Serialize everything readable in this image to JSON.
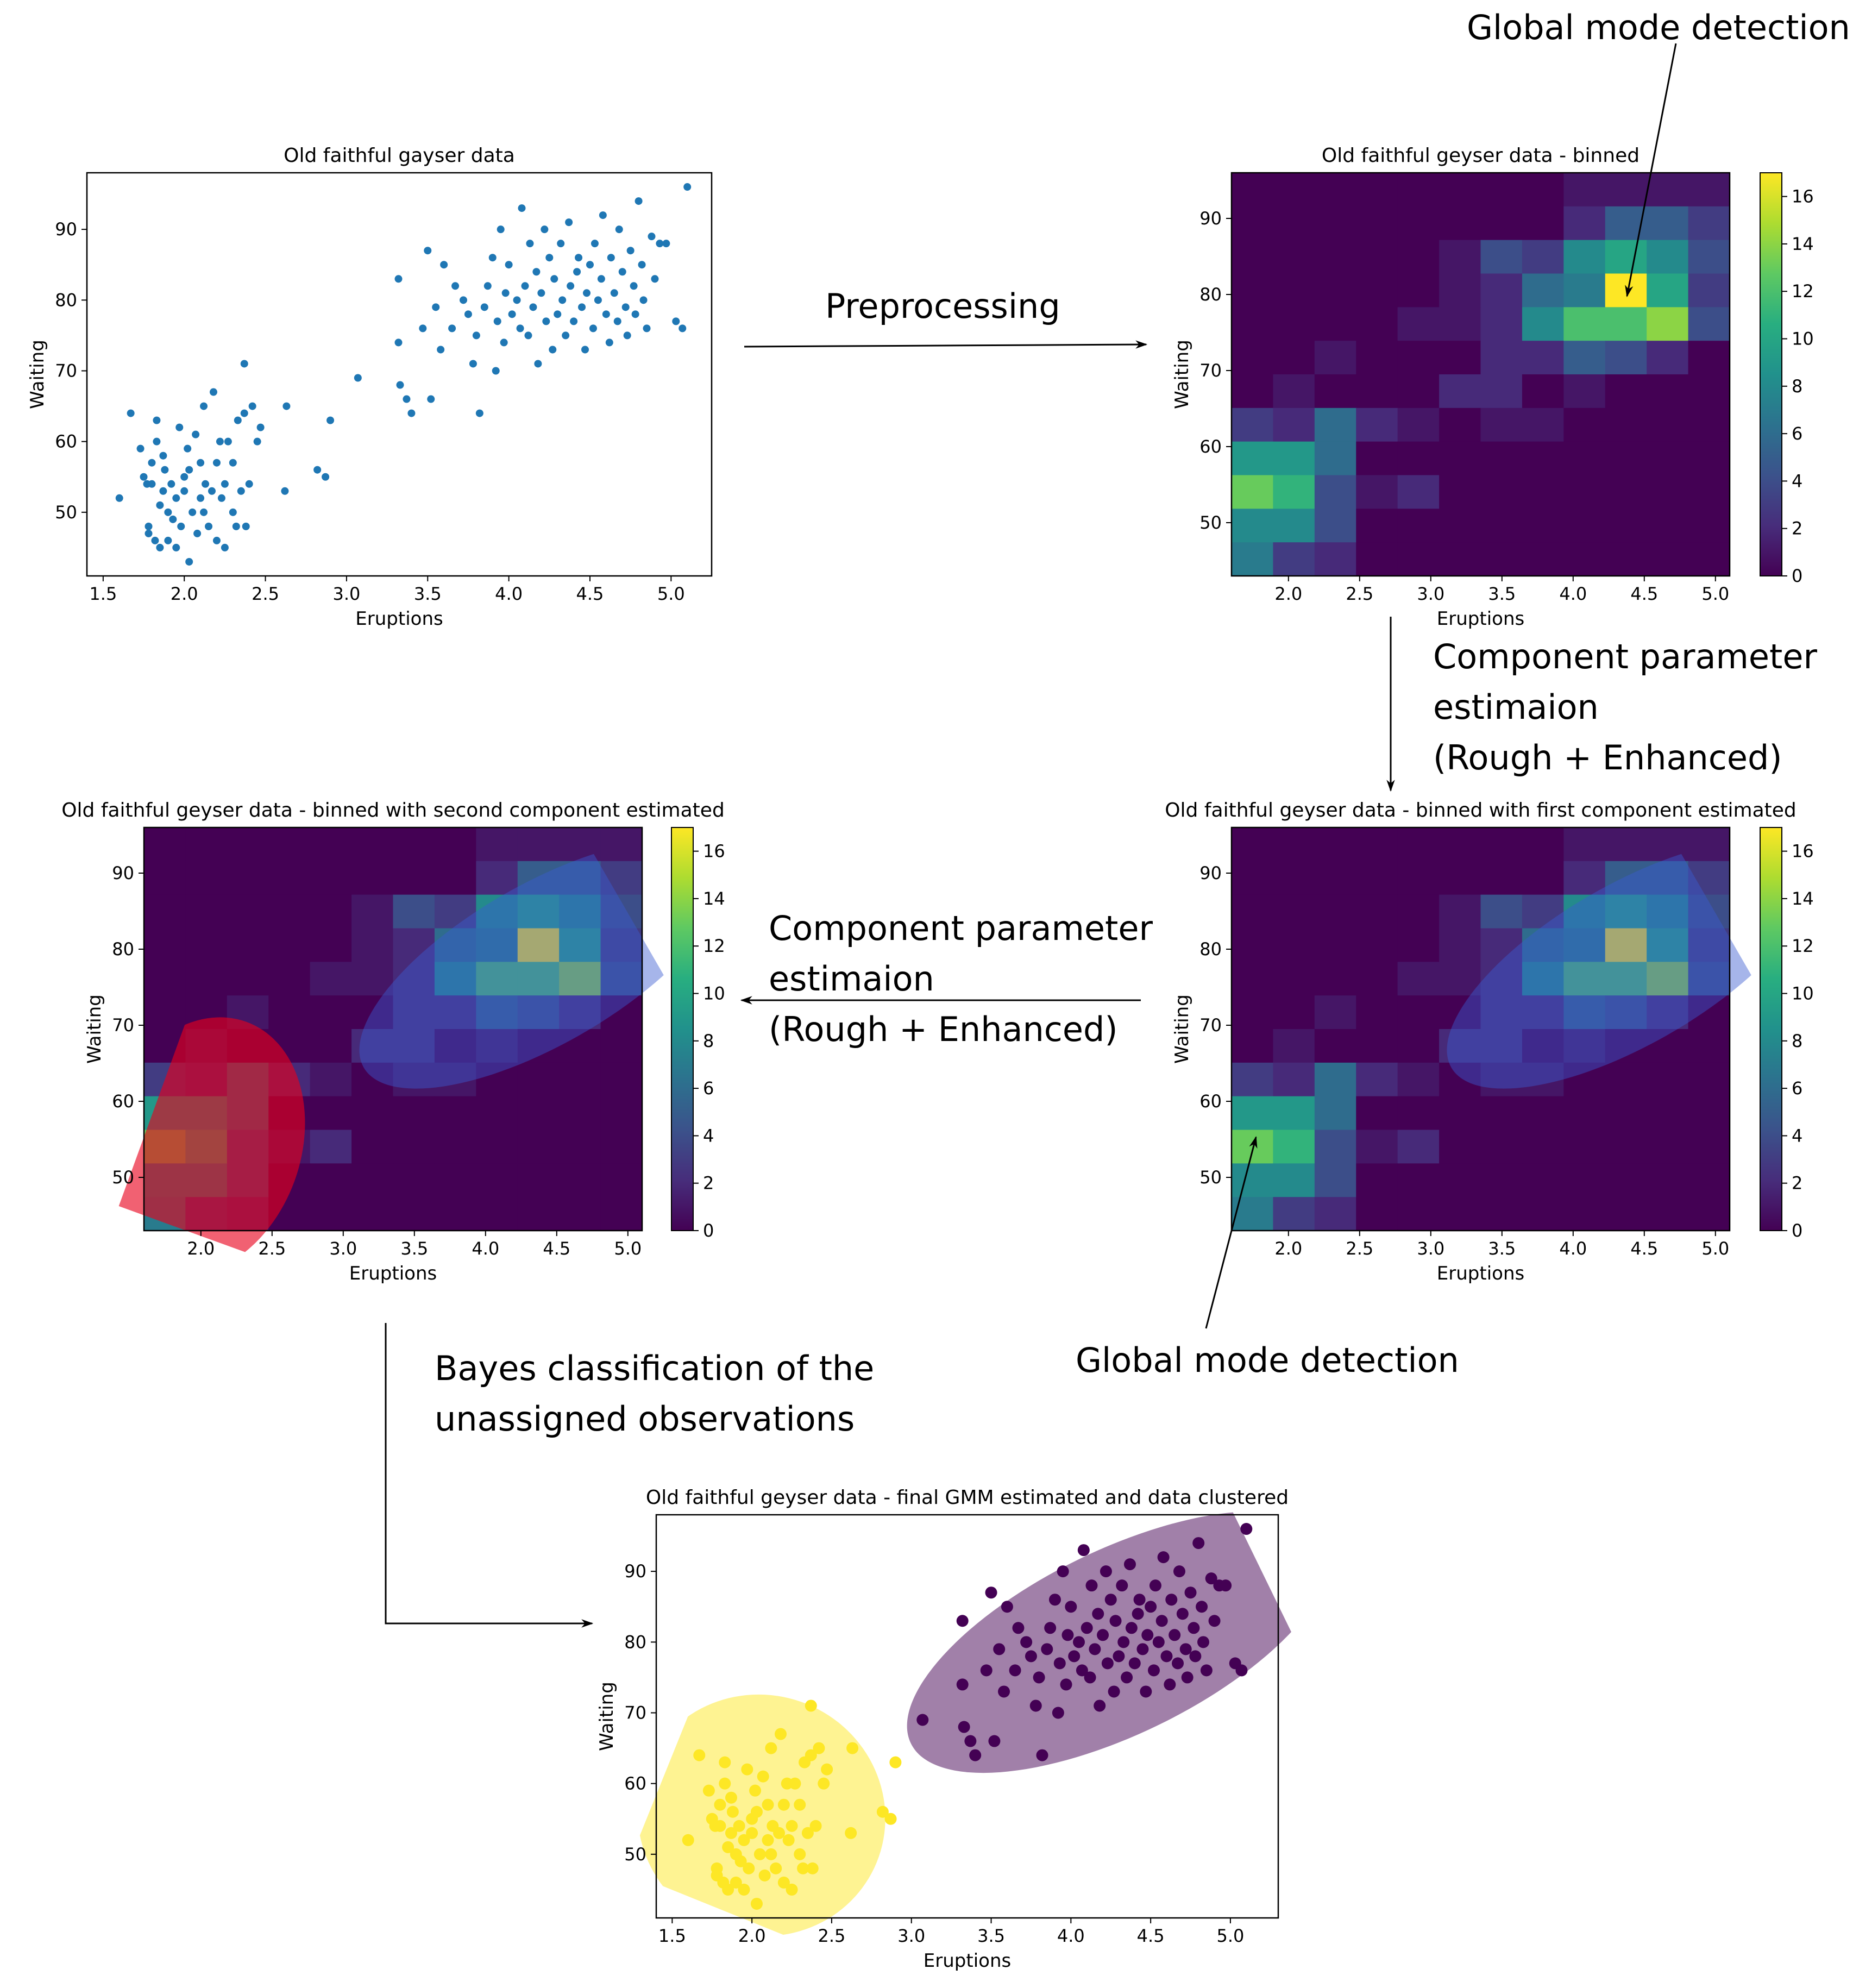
{
  "annotations": {
    "global_mode_top": "Global mode detection",
    "preprocessing": "Preprocessing",
    "cpe_right": [
      "Component parameter",
      "estimaion",
      "(Rough + Enhanced)"
    ],
    "cpe_middle": [
      "Component parameter",
      "estimaion",
      "(Rough + Enhanced)"
    ],
    "global_mode_bottom": "Global mode detection",
    "bayes": [
      "Bayes classification of the",
      "unassigned observations"
    ]
  },
  "colors": {
    "scatter": "#1f77b4",
    "cluster_a": "#440154",
    "cluster_b": "#fde725",
    "red_ellipse": "#e8001c",
    "blue_ellipse": "#3a5bd0"
  },
  "chart_data": [
    {
      "id": "scatter",
      "type": "scatter",
      "title": "Old faithful gayser data",
      "xlabel": "Eruptions",
      "ylabel": "Waiting",
      "xlim": [
        1.4,
        5.25
      ],
      "ylim": [
        41,
        98
      ],
      "xticks": [
        "1.5",
        "2.0",
        "2.5",
        "3.0",
        "3.5",
        "4.0",
        "4.5",
        "5.0"
      ],
      "yticks": [
        "50",
        "60",
        "70",
        "80",
        "90"
      ],
      "points": [
        [
          1.6,
          52
        ],
        [
          1.67,
          64
        ],
        [
          1.73,
          59
        ],
        [
          1.75,
          55
        ],
        [
          1.77,
          54
        ],
        [
          1.78,
          47
        ],
        [
          1.78,
          48
        ],
        [
          1.8,
          54
        ],
        [
          1.8,
          57
        ],
        [
          1.82,
          46
        ],
        [
          1.83,
          60
        ],
        [
          1.83,
          63
        ],
        [
          1.85,
          51
        ],
        [
          1.85,
          45
        ],
        [
          1.87,
          58
        ],
        [
          1.87,
          53
        ],
        [
          1.88,
          56
        ],
        [
          1.9,
          46
        ],
        [
          1.9,
          50
        ],
        [
          1.92,
          54
        ],
        [
          1.93,
          49
        ],
        [
          1.95,
          45
        ],
        [
          1.95,
          52
        ],
        [
          1.97,
          62
        ],
        [
          1.98,
          48
        ],
        [
          2.0,
          53
        ],
        [
          2.0,
          55
        ],
        [
          2.02,
          59
        ],
        [
          2.03,
          56
        ],
        [
          2.03,
          43
        ],
        [
          2.05,
          50
        ],
        [
          2.07,
          61
        ],
        [
          2.08,
          47
        ],
        [
          2.1,
          57
        ],
        [
          2.1,
          52
        ],
        [
          2.12,
          65
        ],
        [
          2.12,
          50
        ],
        [
          2.13,
          54
        ],
        [
          2.15,
          48
        ],
        [
          2.17,
          53
        ],
        [
          2.18,
          67
        ],
        [
          2.2,
          57
        ],
        [
          2.2,
          46
        ],
        [
          2.22,
          60
        ],
        [
          2.23,
          52
        ],
        [
          2.25,
          54
        ],
        [
          2.25,
          45
        ],
        [
          2.27,
          60
        ],
        [
          2.3,
          57
        ],
        [
          2.3,
          50
        ],
        [
          2.32,
          48
        ],
        [
          2.33,
          63
        ],
        [
          2.35,
          53
        ],
        [
          2.37,
          64
        ],
        [
          2.37,
          71
        ],
        [
          2.38,
          48
        ],
        [
          2.4,
          54
        ],
        [
          2.42,
          65
        ],
        [
          2.45,
          60
        ],
        [
          2.47,
          62
        ],
        [
          2.62,
          53
        ],
        [
          2.63,
          65
        ],
        [
          2.82,
          56
        ],
        [
          2.87,
          55
        ],
        [
          2.9,
          63
        ],
        [
          3.07,
          69
        ],
        [
          3.32,
          83
        ],
        [
          3.32,
          74
        ],
        [
          3.33,
          68
        ],
        [
          3.37,
          66
        ],
        [
          3.4,
          64
        ],
        [
          3.47,
          76
        ],
        [
          3.5,
          87
        ],
        [
          3.52,
          66
        ],
        [
          3.55,
          79
        ],
        [
          3.58,
          73
        ],
        [
          3.6,
          85
        ],
        [
          3.65,
          76
        ],
        [
          3.67,
          82
        ],
        [
          3.72,
          80
        ],
        [
          3.75,
          78
        ],
        [
          3.78,
          71
        ],
        [
          3.8,
          75
        ],
        [
          3.82,
          64
        ],
        [
          3.85,
          79
        ],
        [
          3.87,
          82
        ],
        [
          3.9,
          86
        ],
        [
          3.92,
          70
        ],
        [
          3.93,
          77
        ],
        [
          3.95,
          90
        ],
        [
          3.97,
          74
        ],
        [
          3.98,
          81
        ],
        [
          4.0,
          85
        ],
        [
          4.02,
          78
        ],
        [
          4.05,
          80
        ],
        [
          4.07,
          76
        ],
        [
          4.08,
          93
        ],
        [
          4.1,
          82
        ],
        [
          4.12,
          75
        ],
        [
          4.13,
          88
        ],
        [
          4.15,
          79
        ],
        [
          4.17,
          84
        ],
        [
          4.18,
          71
        ],
        [
          4.2,
          81
        ],
        [
          4.22,
          90
        ],
        [
          4.23,
          77
        ],
        [
          4.25,
          86
        ],
        [
          4.27,
          73
        ],
        [
          4.28,
          83
        ],
        [
          4.3,
          78
        ],
        [
          4.32,
          88
        ],
        [
          4.33,
          80
        ],
        [
          4.35,
          75
        ],
        [
          4.37,
          91
        ],
        [
          4.38,
          82
        ],
        [
          4.4,
          77
        ],
        [
          4.42,
          84
        ],
        [
          4.43,
          86
        ],
        [
          4.45,
          79
        ],
        [
          4.47,
          73
        ],
        [
          4.48,
          81
        ],
        [
          4.5,
          85
        ],
        [
          4.52,
          76
        ],
        [
          4.53,
          88
        ],
        [
          4.55,
          80
        ],
        [
          4.57,
          83
        ],
        [
          4.58,
          92
        ],
        [
          4.6,
          78
        ],
        [
          4.62,
          74
        ],
        [
          4.63,
          86
        ],
        [
          4.65,
          81
        ],
        [
          4.67,
          77
        ],
        [
          4.68,
          90
        ],
        [
          4.7,
          84
        ],
        [
          4.72,
          79
        ],
        [
          4.73,
          75
        ],
        [
          4.75,
          87
        ],
        [
          4.77,
          82
        ],
        [
          4.78,
          78
        ],
        [
          4.8,
          94
        ],
        [
          4.82,
          85
        ],
        [
          4.83,
          80
        ],
        [
          4.85,
          76
        ],
        [
          4.88,
          89
        ],
        [
          4.9,
          83
        ],
        [
          4.93,
          88
        ],
        [
          4.97,
          88
        ],
        [
          5.03,
          77
        ],
        [
          5.07,
          76
        ],
        [
          5.1,
          96
        ]
      ]
    },
    {
      "id": "binned",
      "type": "heatmap",
      "title": "Old faithful geyser data - binned",
      "xlabel": "Eruptions",
      "ylabel": "Waiting",
      "xlim": [
        1.6,
        5.1
      ],
      "ylim": [
        43,
        96
      ],
      "xticks": [
        "2.0",
        "2.5",
        "3.0",
        "3.5",
        "4.0",
        "4.5",
        "5.0"
      ],
      "yticks": [
        "50",
        "60",
        "70",
        "80",
        "90"
      ],
      "cbar_ticks": [
        "0",
        "2",
        "4",
        "6",
        "8",
        "10",
        "12",
        "14",
        "16"
      ],
      "vmax": 17,
      "grid": [
        [
          0,
          0,
          0,
          0,
          0,
          0,
          0,
          0,
          1,
          1,
          1,
          1
        ],
        [
          0,
          0,
          0,
          0,
          0,
          0,
          0,
          0,
          2,
          5,
          5,
          3
        ],
        [
          0,
          0,
          0,
          0,
          0,
          1,
          4,
          3,
          8,
          10,
          8,
          4
        ],
        [
          0,
          0,
          0,
          0,
          0,
          1,
          2,
          6,
          7,
          17,
          10,
          3
        ],
        [
          0,
          0,
          0,
          0,
          1,
          1,
          2,
          8,
          12,
          12,
          14,
          4
        ],
        [
          0,
          0,
          1,
          0,
          0,
          0,
          2,
          2,
          5,
          4,
          2,
          0
        ],
        [
          0,
          1,
          0,
          0,
          0,
          2,
          2,
          0,
          1,
          0,
          0,
          0
        ],
        [
          3,
          2,
          6,
          2,
          1,
          0,
          1,
          1,
          0,
          0,
          0,
          0
        ],
        [
          9,
          9,
          6,
          0,
          0,
          0,
          0,
          0,
          0,
          0,
          0,
          0
        ],
        [
          13,
          11,
          4,
          1,
          2,
          0,
          0,
          0,
          0,
          0,
          0,
          0
        ],
        [
          8,
          8,
          4,
          0,
          0,
          0,
          0,
          0,
          0,
          0,
          0,
          0
        ],
        [
          7,
          3,
          2,
          0,
          0,
          0,
          0,
          0,
          0,
          0,
          0,
          0
        ]
      ]
    },
    {
      "id": "first",
      "type": "heatmap",
      "title": "Old faithful geyser data - binned with first component estimated",
      "xlabel": "Eruptions",
      "ylabel": "Waiting",
      "xlim": [
        1.6,
        5.1
      ],
      "ylim": [
        43,
        96
      ],
      "xticks": [
        "2.0",
        "2.5",
        "3.0",
        "3.5",
        "4.0",
        "4.5",
        "5.0"
      ],
      "yticks": [
        "50",
        "60",
        "70",
        "80",
        "90"
      ],
      "cbar_ticks": [
        "0",
        "2",
        "4",
        "6",
        "8",
        "10",
        "12",
        "14",
        "16"
      ],
      "vmax": 17,
      "ellipses": [
        {
          "cx": 4.4,
          "cy": 78,
          "rx": 1.45,
          "ry": 10.5,
          "angle": -30,
          "color": "blue"
        }
      ],
      "same_grid_as": "binned"
    },
    {
      "id": "second",
      "type": "heatmap",
      "title": "Old faithful geyser data - binned with second component estimated",
      "xlabel": "Eruptions",
      "ylabel": "Waiting",
      "xlim": [
        1.6,
        5.1
      ],
      "ylim": [
        43,
        96
      ],
      "xticks": [
        "2.0",
        "2.5",
        "3.0",
        "3.5",
        "4.0",
        "4.5",
        "5.0"
      ],
      "yticks": [
        "50",
        "60",
        "70",
        "80",
        "90"
      ],
      "cbar_ticks": [
        "0",
        "2",
        "4",
        "6",
        "8",
        "10",
        "12",
        "14",
        "16"
      ],
      "vmax": 17,
      "ellipses": [
        {
          "cx": 4.4,
          "cy": 78,
          "rx": 1.45,
          "ry": 10.5,
          "angle": -30,
          "color": "blue"
        },
        {
          "cx": 2.0,
          "cy": 54,
          "rx": 0.7,
          "ry": 17.5,
          "angle": 20,
          "color": "red"
        }
      ],
      "same_grid_as": "binned"
    },
    {
      "id": "final",
      "type": "scatter",
      "title": "Old faithful geyser data - final GMM estimated and data clustered",
      "xlabel": "Eruptions",
      "ylabel": "Waiting",
      "xlim": [
        1.4,
        5.3
      ],
      "ylim": [
        41,
        98
      ],
      "xticks": [
        "1.5",
        "2.0",
        "2.5",
        "3.0",
        "3.5",
        "4.0",
        "4.5",
        "5.0"
      ],
      "yticks": [
        "50",
        "60",
        "70",
        "80",
        "90"
      ],
      "ellipses": [
        {
          "cx": 4.3,
          "cy": 80,
          "rx": 1.45,
          "ry": 13,
          "angle": -26,
          "color": "cluster_a"
        },
        {
          "cx": 2.06,
          "cy": 55.5,
          "rx": 0.78,
          "ry": 17,
          "angle": 22,
          "color": "cluster_b"
        }
      ],
      "split_x": 3.0
    }
  ]
}
